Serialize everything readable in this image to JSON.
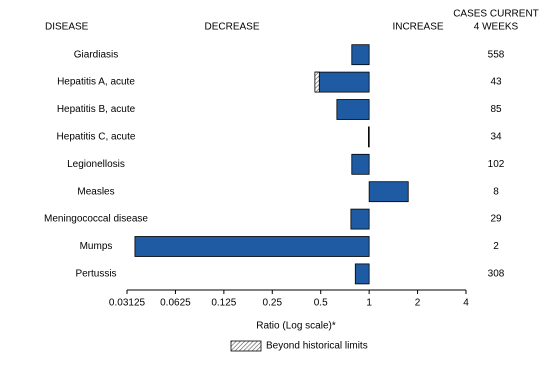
{
  "chart_data": {
    "type": "bar",
    "orientation": "horizontal",
    "log_scale": true,
    "category_header": "DISEASE",
    "decrease_label": "DECREASE",
    "increase_label": "INCREASE",
    "cases_header": [
      "CASES CURRENT",
      "4 WEEKS"
    ],
    "categories": [
      "Giardiasis",
      "Hepatitis A, acute",
      "Hepatitis B, acute",
      "Hepatitis C, acute",
      "Legionellosis",
      "Measles",
      "Meningococcal disease",
      "Mumps",
      "Pertussis"
    ],
    "values": [
      0.78,
      0.46,
      0.63,
      0.99,
      0.78,
      1.75,
      0.77,
      0.035,
      0.82
    ],
    "historical_limit": [
      null,
      0.49,
      null,
      null,
      null,
      null,
      null,
      null,
      null
    ],
    "cases": [
      558,
      43,
      85,
      34,
      102,
      8,
      29,
      2,
      308
    ],
    "color": "#1f5ba3",
    "xlim": [
      0.03125,
      4
    ],
    "xticks": [
      0.03125,
      0.0625,
      0.125,
      0.25,
      0.5,
      1,
      2,
      4
    ],
    "xlabel": "Ratio (Log scale)*",
    "legend": "Beyond historical limits"
  }
}
